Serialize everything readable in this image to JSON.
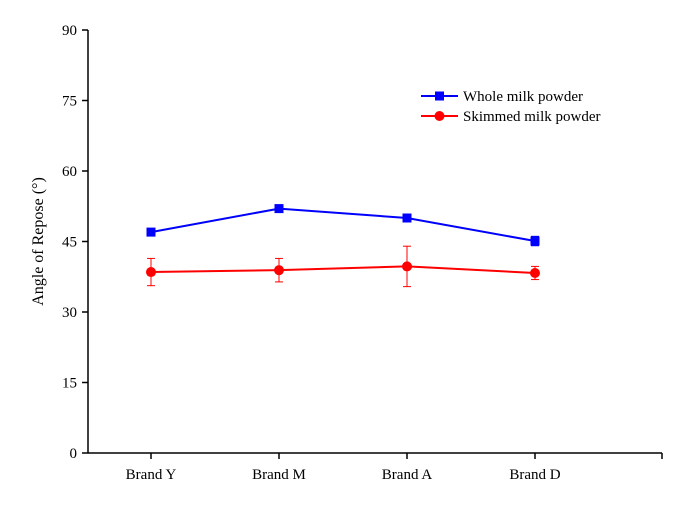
{
  "chart_data": {
    "type": "line",
    "title": "",
    "xlabel": "",
    "ylabel": "Angle of Repose (°)",
    "categories": [
      "Brand Y",
      "Brand M",
      "Brand A",
      "Brand D"
    ],
    "ylim": [
      0,
      90
    ],
    "yticks": [
      0,
      15,
      30,
      45,
      60,
      75,
      90
    ],
    "grid": false,
    "legend_position": "top-right",
    "series": [
      {
        "name": "Whole milk powder",
        "color": "#0000ff",
        "marker": "square",
        "values": [
          47.0,
          52.0,
          50.0,
          45.1
        ],
        "errors": [
          0.4,
          0.5,
          0.4,
          1.0
        ]
      },
      {
        "name": "Skimmed milk powder",
        "color": "#ff0000",
        "marker": "circle",
        "values": [
          38.5,
          38.9,
          39.7,
          38.3
        ],
        "errors": [
          2.9,
          2.5,
          4.3,
          1.4
        ]
      }
    ]
  }
}
